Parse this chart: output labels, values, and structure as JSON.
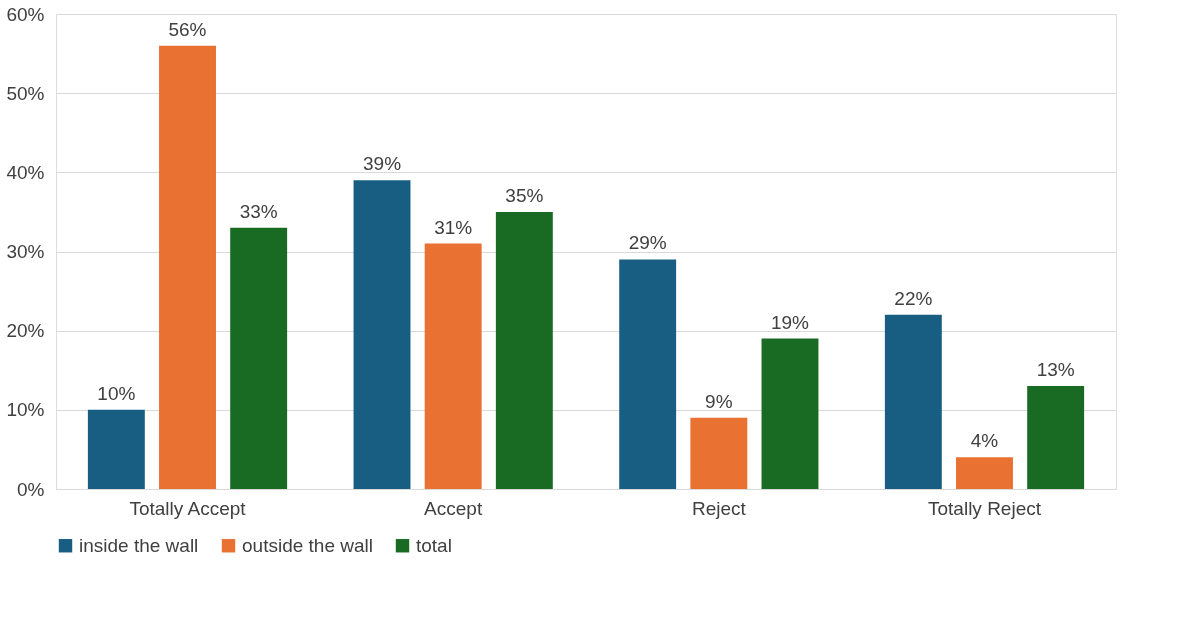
{
  "chart_data": {
    "type": "bar",
    "categories": [
      "Totally Accept",
      "Accept",
      "Reject",
      "Totally Reject"
    ],
    "series": [
      {
        "name": "inside the wall",
        "color": "#175e82",
        "values": [
          10,
          39,
          29,
          22
        ],
        "value_labels": [
          "10%",
          "39%",
          "29%",
          "22%"
        ]
      },
      {
        "name": "outside the wall",
        "color": "#e97132",
        "values": [
          56,
          31,
          9,
          4
        ],
        "value_labels": [
          "56%",
          "31%",
          "9%",
          "4%"
        ]
      },
      {
        "name": "total",
        "color": "#196b24",
        "values": [
          33,
          35,
          19,
          13
        ],
        "value_labels": [
          "33%",
          "35%",
          "19%",
          "13%"
        ]
      }
    ],
    "ylim": [
      0,
      60
    ],
    "yticks": [
      {
        "value": 0,
        "label": "0%"
      },
      {
        "value": 10,
        "label": "10%"
      },
      {
        "value": 20,
        "label": "20%"
      },
      {
        "value": 30,
        "label": "30%"
      },
      {
        "value": 40,
        "label": "40%"
      },
      {
        "value": 50,
        "label": "50%"
      },
      {
        "value": 60,
        "label": "60%"
      }
    ],
    "grid": "y",
    "legend": "bottom left"
  }
}
